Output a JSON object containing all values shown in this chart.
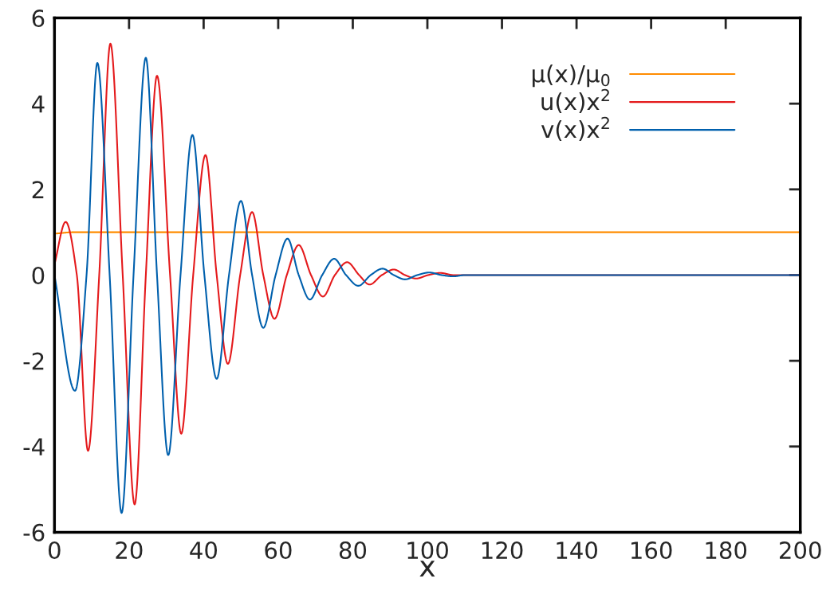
{
  "chart_data": {
    "type": "line",
    "xlabel": "x",
    "xlim": [
      0,
      200
    ],
    "ylim": [
      -6,
      6
    ],
    "xticks": [
      0,
      20,
      40,
      60,
      80,
      100,
      120,
      140,
      160,
      180,
      200
    ],
    "yticks": [
      -6,
      -4,
      -2,
      0,
      2,
      4,
      6
    ],
    "grid": false,
    "legend": "top right",
    "marker": "none",
    "line_style": "solid",
    "series": [
      {
        "name": "μ(x)/μ$_{0}$",
        "color": "#ff8c00",
        "x": [
          0.5,
          5,
          200
        ],
        "values": [
          0.97,
          1,
          1
        ]
      },
      {
        "name": "u(x)x$^{2}$",
        "color": "#e41a1c",
        "x": [
          0,
          3,
          6,
          9,
          12,
          15,
          18.3,
          21.5,
          24.5,
          27.5,
          31,
          34,
          37.2,
          40.5,
          43.5,
          46.5,
          49.8,
          53,
          56,
          59,
          62.3,
          65.5,
          68.8,
          72,
          75.2,
          78.5,
          81.7,
          84.5,
          87.8,
          91,
          94,
          97,
          100.2,
          103.5,
          107,
          120,
          200
        ],
        "values": [
          0.25,
          1.24,
          0,
          -4.1,
          0,
          5.4,
          0,
          -5.35,
          0,
          4.65,
          0,
          -3.7,
          0,
          2.8,
          0,
          -2.07,
          0,
          1.47,
          0,
          -1.02,
          0,
          0.7,
          0,
          -0.5,
          0,
          0.3,
          0,
          -0.22,
          0,
          0.13,
          0,
          -0.08,
          0,
          0.05,
          0,
          0,
          0
        ]
      },
      {
        "name": "v(x)x$^{2}$",
        "color": "#0060ad",
        "x": [
          0,
          5.5,
          8.6,
          11.5,
          14.8,
          18,
          21.2,
          24.5,
          27.5,
          30.5,
          33.8,
          37,
          40.2,
          43.5,
          46.8,
          50,
          53,
          56,
          59.3,
          62.5,
          65.5,
          68.5,
          71.8,
          75,
          78.2,
          81.5,
          84.8,
          88,
          91,
          94,
          97.3,
          100.5,
          103.8,
          107,
          110,
          200
        ],
        "values": [
          0,
          -2.7,
          0,
          4.95,
          0,
          -5.55,
          0,
          5.07,
          0,
          -4.2,
          0,
          3.27,
          0,
          -2.42,
          0,
          1.73,
          0,
          -1.23,
          0,
          0.85,
          0,
          -0.57,
          0,
          0.38,
          0,
          -0.25,
          0,
          0.15,
          0,
          -0.1,
          0,
          0.06,
          0,
          -0.03,
          0,
          0
        ]
      }
    ]
  }
}
